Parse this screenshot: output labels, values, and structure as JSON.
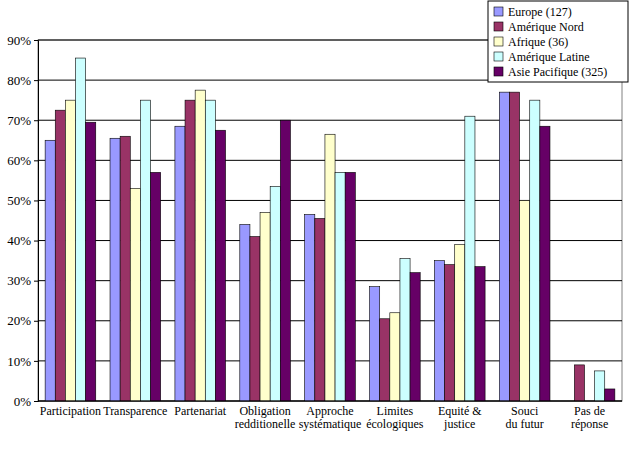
{
  "chart_data": {
    "type": "bar",
    "categories": [
      "Participation",
      "Transparence",
      "Partenariat",
      "Obligation\nredditionelle",
      "Approche\nsystématique",
      "Limites\nécologiques",
      "Equité &\njustice",
      "Souci\ndu futur",
      "Pas de\nréponse"
    ],
    "series": [
      {
        "name": "Europe (127)",
        "color": "#9999ff",
        "values": [
          65,
          65.5,
          68.5,
          44,
          46.5,
          28.5,
          35,
          77,
          0
        ]
      },
      {
        "name": "Amérique Nord",
        "color": "#993366",
        "values": [
          72.5,
          66,
          75,
          41,
          45.5,
          20.5,
          34,
          77,
          9
        ]
      },
      {
        "name": "Afrique (36)",
        "color": "#ffffcc",
        "values": [
          75,
          53,
          77.5,
          47,
          66.5,
          22,
          39,
          50,
          0
        ]
      },
      {
        "name": "Amérique Latine",
        "color": "#ccffff",
        "values": [
          85.5,
          75,
          75,
          53.5,
          57,
          35.5,
          71,
          75,
          7.5
        ]
      },
      {
        "name": "Asie Pacifique (325)",
        "color": "#660066",
        "values": [
          69.5,
          57,
          67.5,
          70,
          57,
          32,
          33.5,
          68.5,
          3
        ]
      }
    ],
    "ylim": [
      0,
      90
    ],
    "yticks": [
      {
        "value": 0,
        "label": "0%"
      },
      {
        "value": 10,
        "label": "10%"
      },
      {
        "value": 20,
        "label": "20%"
      },
      {
        "value": 30,
        "label": "30%"
      },
      {
        "value": 40,
        "label": "40%"
      },
      {
        "value": 50,
        "label": "50%"
      },
      {
        "value": 60,
        "label": "60%"
      },
      {
        "value": 70,
        "label": "70%"
      },
      {
        "value": 80,
        "label": "80%"
      },
      {
        "value": 90,
        "label": "90%"
      }
    ],
    "grid": true,
    "legend": "top-right"
  }
}
